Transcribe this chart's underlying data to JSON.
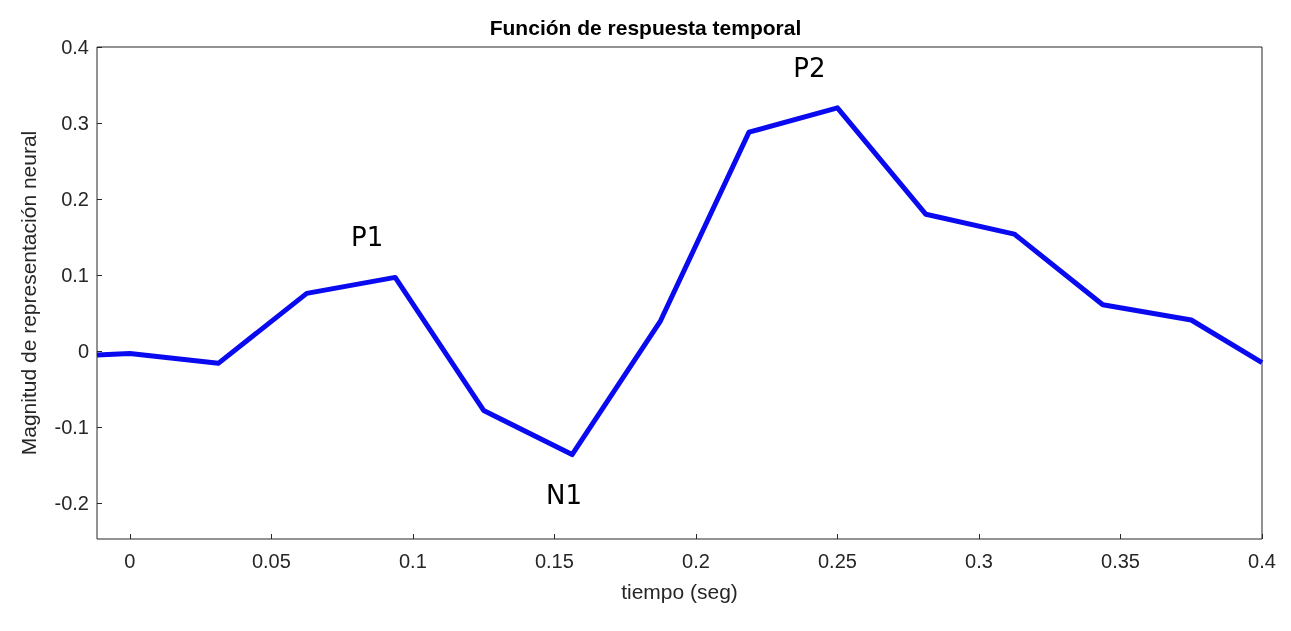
{
  "chart_data": {
    "type": "line",
    "title": "Función de respuesta temporal",
    "xlabel": "tiempo (seg)",
    "ylabel": "Magnitud de representación neural",
    "x": [
      -0.0116,
      0,
      0.03125,
      0.0625,
      0.09375,
      0.125,
      0.15625,
      0.1875,
      0.21875,
      0.25,
      0.28125,
      0.3125,
      0.34375,
      0.375,
      0.4
    ],
    "series": [
      {
        "color": "#0a0af0",
        "values": [
          -0.005,
          -0.003,
          -0.016,
          0.076,
          0.097,
          -0.078,
          -0.136,
          0.04,
          0.288,
          0.32,
          0.18,
          0.154,
          0.061,
          0.041,
          -0.015
        ]
      }
    ],
    "xlim": [
      -0.0116,
      0.4
    ],
    "xticks": [
      0,
      0.05,
      0.1,
      0.15,
      0.2,
      0.25,
      0.3,
      0.35,
      0.4
    ],
    "ylim": [
      -0.247,
      0.4
    ],
    "yticks": [
      -0.2,
      -0.1,
      0,
      0.1,
      0.2,
      0.3,
      0.4
    ],
    "annotations": [
      {
        "text": "P1",
        "x": 0.09375,
        "y": 0.097
      },
      {
        "text": "N1",
        "x": 0.15625,
        "y": -0.136
      },
      {
        "text": "P2",
        "x": 0.25,
        "y": 0.32
      }
    ],
    "grid": false,
    "marker": "none",
    "line_style": "solid"
  }
}
